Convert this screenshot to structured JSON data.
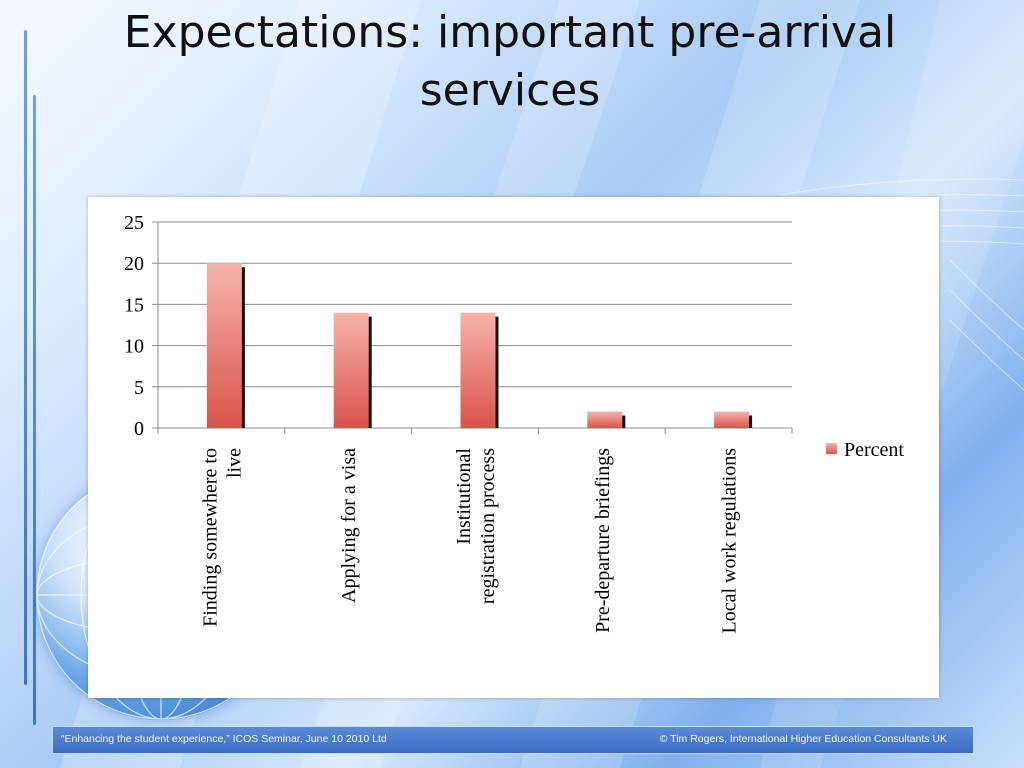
{
  "slide": {
    "title": "Expectations: important pre-arrival services"
  },
  "footer": {
    "left_text": "“Enhancing the student experience,” ICOS Seminar, June 10 2010 Ltd",
    "right_text": "© Tim Rogers, International Higher Education Consultants UK"
  },
  "colors": {
    "bar_top": "#f7b3ac",
    "bar_bottom": "#d9534a",
    "bar_shadow": "#111111",
    "gridline": "#8c8c8c"
  },
  "chart_data": {
    "type": "bar",
    "title": "",
    "xlabel": "",
    "ylabel": "",
    "categories": [
      "Finding somewhere to live",
      "Applying for a visa",
      "Institutional registration process",
      "Pre-departure briefings",
      "Local work regulations"
    ],
    "series": [
      {
        "name": "Percent",
        "values": [
          20,
          14,
          14,
          2,
          2
        ]
      }
    ],
    "ylim": [
      0,
      25
    ],
    "yticks": [
      0,
      5,
      10,
      15,
      20,
      25
    ],
    "grid": true,
    "legend_position": "right"
  }
}
